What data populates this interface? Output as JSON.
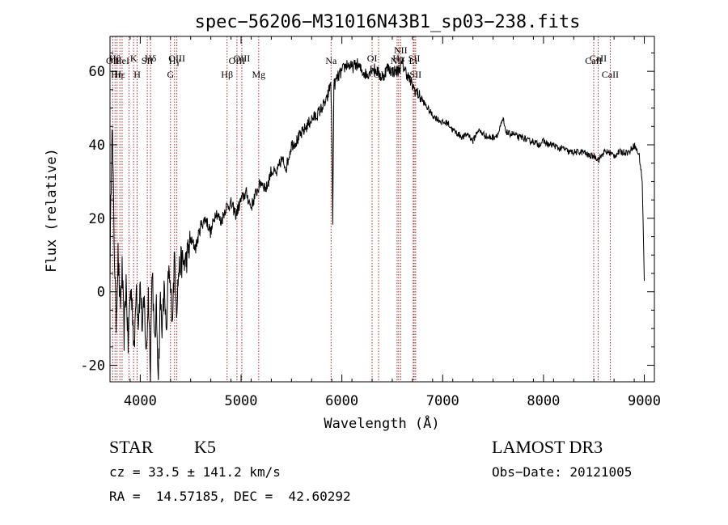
{
  "chart_data": {
    "type": "line",
    "title": "spec−56206−M31016N43B1_sp03−238.fits",
    "xlabel": "Wavelength (Å)",
    "ylabel": "Flux (relative)",
    "xlim": [
      3700,
      9100
    ],
    "ylim": [
      -24.5,
      69.5
    ],
    "x_ticks": [
      4000,
      5000,
      6000,
      7000,
      8000,
      9000
    ],
    "y_ticks": [
      -20,
      0,
      20,
      40,
      60
    ],
    "grid": false,
    "line_color": "#000000",
    "marker_color": "#b22222",
    "series": [
      {
        "x": [
          3700,
          3720,
          3740,
          3760,
          3780,
          3800,
          3820,
          3840,
          3860,
          3880,
          3900,
          3920,
          3940,
          3960,
          3980,
          4000,
          4020,
          4040,
          4060,
          4080,
          4100,
          4120,
          4140,
          4160,
          4180,
          4200,
          4220,
          4240,
          4260,
          4280,
          4300,
          4320,
          4340,
          4360,
          4380,
          4400,
          4450,
          4500,
          4550,
          4600,
          4650,
          4700,
          4750,
          4800,
          4850,
          4900,
          4950,
          5000,
          5050,
          5100,
          5150,
          5200,
          5250,
          5300,
          5350,
          5400,
          5450,
          5500,
          5550,
          5600,
          5650,
          5700,
          5750,
          5800,
          5850,
          5890,
          5900,
          5910,
          5920,
          5950,
          6000,
          6050,
          6100,
          6150,
          6200,
          6250,
          6300,
          6350,
          6400,
          6450,
          6500,
          6550,
          6600,
          6650,
          6700,
          6750,
          6800,
          6850,
          6900,
          6950,
          7000,
          7050,
          7100,
          7150,
          7200,
          7250,
          7300,
          7350,
          7400,
          7450,
          7500,
          7550,
          7600,
          7620,
          7650,
          7700,
          7750,
          7800,
          7850,
          7900,
          7950,
          8000,
          8050,
          8100,
          8150,
          8200,
          8250,
          8300,
          8350,
          8400,
          8450,
          8500,
          8550,
          8600,
          8650,
          8700,
          8750,
          8800,
          8850,
          8900,
          8950,
          8980,
          9000
        ],
        "y": [
          5,
          48,
          15,
          -8,
          10,
          -5,
          6,
          -12,
          3,
          -15,
          0,
          -2,
          -18,
          4,
          -8,
          2,
          -10,
          -3,
          -18,
          0,
          -20,
          8,
          -15,
          -5,
          -22,
          -2,
          -10,
          2,
          -14,
          6,
          0,
          -6,
          10,
          -4,
          5,
          8,
          8,
          14,
          12,
          18,
          20,
          16,
          22,
          19,
          23,
          24,
          21,
          25,
          27,
          23,
          27,
          30,
          28,
          33,
          32,
          36,
          34,
          40,
          41,
          43,
          45,
          47,
          48,
          50,
          52,
          57,
          45,
          18,
          56,
          58,
          60,
          62,
          61,
          62,
          60,
          59,
          61,
          60,
          58,
          61,
          60,
          60,
          62,
          59,
          56,
          54,
          52,
          50,
          48,
          47,
          46,
          46,
          44,
          43,
          42,
          43,
          41,
          44,
          43,
          42,
          42,
          43,
          47,
          44,
          43,
          43,
          42,
          42,
          41,
          41,
          40,
          41,
          40,
          40,
          39,
          39,
          38,
          38,
          38,
          38,
          37,
          37,
          36,
          38,
          38,
          37,
          38,
          38,
          38,
          40,
          37,
          30,
          3
        ]
      }
    ],
    "line_markers": [
      {
        "wavelength": 3727,
        "label": "OII",
        "row": 2
      },
      {
        "wavelength": 3750,
        "label": "Hθ",
        "row": 1
      },
      {
        "wavelength": 3770,
        "label": "Hη",
        "row": 3
      },
      {
        "wavelength": 3798,
        "label": "Hε",
        "row": 3
      },
      {
        "wavelength": 3820,
        "label": "HeI",
        "row": 2
      },
      {
        "wavelength": 3889,
        "label": "",
        "row": 0
      },
      {
        "wavelength": 3934,
        "label": "K",
        "row": 1
      },
      {
        "wavelength": 3969,
        "label": "H",
        "row": 3
      },
      {
        "wavelength": 4070,
        "label": "SII",
        "row": 2
      },
      {
        "wavelength": 4102,
        "label": "Hδ",
        "row": 1
      },
      {
        "wavelength": 4300,
        "label": "G",
        "row": 3
      },
      {
        "wavelength": 4340,
        "label": "Hγ",
        "row": 2
      },
      {
        "wavelength": 4363,
        "label": "OIII",
        "row": 1
      },
      {
        "wavelength": 4861,
        "label": "Hβ",
        "row": 3
      },
      {
        "wavelength": 4959,
        "label": "OIII",
        "row": 2
      },
      {
        "wavelength": 5007,
        "label": "OIII",
        "row": 1
      },
      {
        "wavelength": 5175,
        "label": "Mg",
        "row": 3
      },
      {
        "wavelength": 5893,
        "label": "Na",
        "row": 2
      },
      {
        "wavelength": 6300,
        "label": "OI",
        "row": 1
      },
      {
        "wavelength": 6364,
        "label": "OI",
        "row": 3
      },
      {
        "wavelength": 6548,
        "label": "NII",
        "row": 2
      },
      {
        "wavelength": 6563,
        "label": "Hα",
        "row": 1
      },
      {
        "wavelength": 6583,
        "label": "NII",
        "row": 0
      },
      {
        "wavelength": 6708,
        "label": "Li",
        "row": 2
      },
      {
        "wavelength": 6717,
        "label": "SII",
        "row": 1
      },
      {
        "wavelength": 6731,
        "label": "SII",
        "row": 3
      },
      {
        "wavelength": 8498,
        "label": "CaII",
        "row": 2
      },
      {
        "wavelength": 8542,
        "label": "CaII",
        "row": 1
      },
      {
        "wavelength": 8662,
        "label": "CaII",
        "row": 3
      }
    ]
  },
  "info": {
    "class": "STAR",
    "subclass": "K5",
    "survey": "LAMOST DR3",
    "cz": "cz = 33.5 ± 141.2 km/s",
    "obs_date": "Obs−Date: 20121005",
    "radec": "RA =  14.57185, DEC =  42.60292"
  }
}
